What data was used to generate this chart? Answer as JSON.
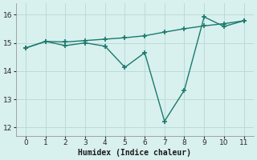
{
  "x": [
    0,
    1,
    2,
    3,
    4,
    5,
    6,
    7,
    8,
    9,
    10,
    11
  ],
  "line1": [
    14.82,
    15.05,
    15.03,
    15.08,
    15.13,
    15.18,
    15.25,
    15.38,
    15.5,
    15.6,
    15.68,
    15.78
  ],
  "line2": [
    14.82,
    15.05,
    14.9,
    15.0,
    14.88,
    14.13,
    14.65,
    12.22,
    13.32,
    15.92,
    15.58,
    15.78
  ],
  "color": "#1a7a6e",
  "bg_color": "#d8f0ee",
  "grid_color": "#b8d8d4",
  "xlabel": "Humidex (Indice chaleur)",
  "ylim": [
    11.7,
    16.4
  ],
  "xlim": [
    -0.5,
    11.5
  ],
  "yticks": [
    12,
    13,
    14,
    15,
    16
  ],
  "xticks": [
    0,
    1,
    2,
    3,
    4,
    5,
    6,
    7,
    8,
    9,
    10,
    11
  ],
  "marker": "+",
  "markersize": 5,
  "linewidth": 1.0
}
